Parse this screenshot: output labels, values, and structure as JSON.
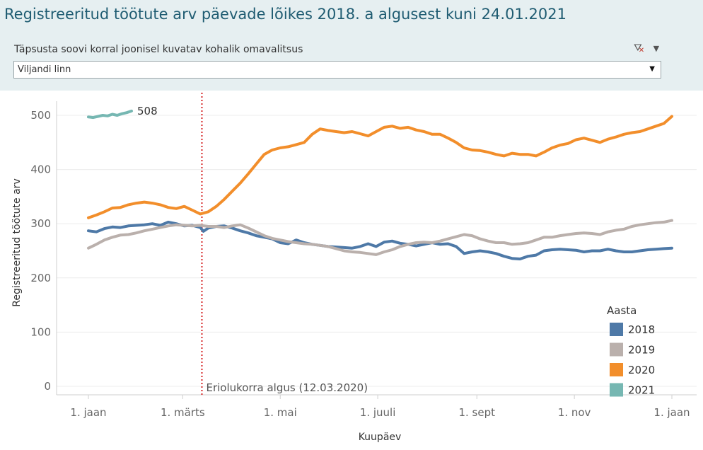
{
  "header": {
    "title": "Registreeritud töötute arv päevade lõikes 2018. a algusest kuni 24.01.2021",
    "filter_label": "Täpsusta soovi korral  joonisel kuvatav kohalik omavalitsus",
    "selected_value": "Viljandi linn",
    "icons": [
      "filter-clear-icon",
      "dropdown-arrow-icon"
    ]
  },
  "chart_data": {
    "type": "line",
    "title": "",
    "xlabel": "Kuupäev",
    "ylabel": "Registreeritud töötute arv",
    "x_domain_days": [
      0,
      365
    ],
    "xlim": [
      "1. jaan",
      "1. jaan"
    ],
    "x_ticks": [
      "1. jaan",
      "1. märts",
      "1. mai",
      "1. juuli",
      "1. sept",
      "1. nov",
      "1. jaan"
    ],
    "x_tick_days": [
      0,
      59,
      120,
      181,
      243,
      304,
      365
    ],
    "ylim": [
      0,
      500
    ],
    "y_ticks": [
      0,
      100,
      200,
      300,
      400,
      500
    ],
    "grid": true,
    "legend": {
      "title": "Aasta",
      "placement": "bottom-right"
    },
    "annotation": {
      "label": "Eriolukorra algus (12.03.2020)",
      "day": 71
    },
    "end_label": {
      "series": "2021",
      "text": "508"
    },
    "series": [
      {
        "name": "2018",
        "color": "#4e79a7",
        "points": [
          [
            0,
            287
          ],
          [
            5,
            285
          ],
          [
            10,
            291
          ],
          [
            15,
            294
          ],
          [
            20,
            293
          ],
          [
            25,
            296
          ],
          [
            30,
            297
          ],
          [
            35,
            298
          ],
          [
            40,
            300
          ],
          [
            45,
            297
          ],
          [
            50,
            303
          ],
          [
            55,
            300
          ],
          [
            60,
            296
          ],
          [
            65,
            297
          ],
          [
            70,
            293
          ],
          [
            72,
            286
          ],
          [
            75,
            292
          ],
          [
            80,
            295
          ],
          [
            85,
            296
          ],
          [
            90,
            292
          ],
          [
            95,
            287
          ],
          [
            100,
            283
          ],
          [
            105,
            278
          ],
          [
            110,
            275
          ],
          [
            115,
            272
          ],
          [
            120,
            265
          ],
          [
            125,
            263
          ],
          [
            130,
            270
          ],
          [
            135,
            265
          ],
          [
            140,
            262
          ],
          [
            145,
            260
          ],
          [
            150,
            258
          ],
          [
            155,
            257
          ],
          [
            160,
            256
          ],
          [
            165,
            255
          ],
          [
            170,
            258
          ],
          [
            175,
            263
          ],
          [
            180,
            258
          ],
          [
            185,
            266
          ],
          [
            190,
            268
          ],
          [
            195,
            264
          ],
          [
            200,
            262
          ],
          [
            205,
            259
          ],
          [
            210,
            262
          ],
          [
            215,
            265
          ],
          [
            220,
            262
          ],
          [
            225,
            263
          ],
          [
            230,
            258
          ],
          [
            235,
            245
          ],
          [
            240,
            248
          ],
          [
            245,
            250
          ],
          [
            250,
            248
          ],
          [
            255,
            245
          ],
          [
            260,
            240
          ],
          [
            265,
            236
          ],
          [
            270,
            235
          ],
          [
            275,
            240
          ],
          [
            280,
            242
          ],
          [
            285,
            250
          ],
          [
            290,
            252
          ],
          [
            295,
            253
          ],
          [
            300,
            252
          ],
          [
            305,
            251
          ],
          [
            310,
            248
          ],
          [
            315,
            250
          ],
          [
            320,
            250
          ],
          [
            325,
            253
          ],
          [
            330,
            250
          ],
          [
            335,
            248
          ],
          [
            340,
            248
          ],
          [
            345,
            250
          ],
          [
            350,
            252
          ],
          [
            355,
            253
          ],
          [
            360,
            254
          ],
          [
            365,
            255
          ]
        ]
      },
      {
        "name": "2019",
        "color": "#bab0ac",
        "points": [
          [
            0,
            255
          ],
          [
            5,
            262
          ],
          [
            10,
            270
          ],
          [
            15,
            275
          ],
          [
            20,
            279
          ],
          [
            25,
            280
          ],
          [
            30,
            283
          ],
          [
            35,
            287
          ],
          [
            40,
            290
          ],
          [
            45,
            293
          ],
          [
            50,
            296
          ],
          [
            55,
            298
          ],
          [
            60,
            297
          ],
          [
            65,
            296
          ],
          [
            70,
            297
          ],
          [
            75,
            295
          ],
          [
            80,
            295
          ],
          [
            85,
            293
          ],
          [
            90,
            296
          ],
          [
            95,
            298
          ],
          [
            100,
            292
          ],
          [
            105,
            285
          ],
          [
            110,
            278
          ],
          [
            115,
            273
          ],
          [
            120,
            270
          ],
          [
            125,
            267
          ],
          [
            130,
            265
          ],
          [
            135,
            263
          ],
          [
            140,
            262
          ],
          [
            145,
            260
          ],
          [
            150,
            258
          ],
          [
            155,
            254
          ],
          [
            160,
            250
          ],
          [
            165,
            248
          ],
          [
            170,
            247
          ],
          [
            175,
            245
          ],
          [
            180,
            243
          ],
          [
            185,
            248
          ],
          [
            190,
            252
          ],
          [
            195,
            258
          ],
          [
            200,
            262
          ],
          [
            205,
            265
          ],
          [
            210,
            266
          ],
          [
            215,
            265
          ],
          [
            220,
            268
          ],
          [
            225,
            272
          ],
          [
            230,
            276
          ],
          [
            235,
            280
          ],
          [
            240,
            278
          ],
          [
            245,
            272
          ],
          [
            250,
            268
          ],
          [
            255,
            265
          ],
          [
            260,
            265
          ],
          [
            265,
            262
          ],
          [
            270,
            263
          ],
          [
            275,
            265
          ],
          [
            280,
            270
          ],
          [
            285,
            275
          ],
          [
            290,
            275
          ],
          [
            295,
            278
          ],
          [
            300,
            280
          ],
          [
            305,
            282
          ],
          [
            310,
            283
          ],
          [
            315,
            282
          ],
          [
            320,
            280
          ],
          [
            325,
            285
          ],
          [
            330,
            288
          ],
          [
            335,
            290
          ],
          [
            340,
            295
          ],
          [
            345,
            298
          ],
          [
            350,
            300
          ],
          [
            355,
            302
          ],
          [
            360,
            303
          ],
          [
            365,
            306
          ]
        ]
      },
      {
        "name": "2020",
        "color": "#f28e2b",
        "points": [
          [
            0,
            311
          ],
          [
            5,
            316
          ],
          [
            10,
            322
          ],
          [
            15,
            329
          ],
          [
            20,
            330
          ],
          [
            25,
            335
          ],
          [
            30,
            338
          ],
          [
            35,
            340
          ],
          [
            40,
            338
          ],
          [
            45,
            335
          ],
          [
            50,
            330
          ],
          [
            55,
            328
          ],
          [
            60,
            332
          ],
          [
            65,
            325
          ],
          [
            70,
            318
          ],
          [
            75,
            322
          ],
          [
            80,
            332
          ],
          [
            85,
            345
          ],
          [
            90,
            360
          ],
          [
            95,
            375
          ],
          [
            100,
            392
          ],
          [
            105,
            410
          ],
          [
            110,
            428
          ],
          [
            115,
            436
          ],
          [
            120,
            440
          ],
          [
            125,
            442
          ],
          [
            130,
            446
          ],
          [
            135,
            450
          ],
          [
            140,
            465
          ],
          [
            145,
            475
          ],
          [
            150,
            472
          ],
          [
            155,
            470
          ],
          [
            160,
            468
          ],
          [
            165,
            470
          ],
          [
            170,
            466
          ],
          [
            175,
            462
          ],
          [
            180,
            470
          ],
          [
            185,
            478
          ],
          [
            190,
            480
          ],
          [
            195,
            476
          ],
          [
            200,
            478
          ],
          [
            205,
            473
          ],
          [
            210,
            470
          ],
          [
            215,
            465
          ],
          [
            220,
            465
          ],
          [
            225,
            458
          ],
          [
            230,
            450
          ],
          [
            235,
            440
          ],
          [
            240,
            436
          ],
          [
            245,
            435
          ],
          [
            250,
            432
          ],
          [
            255,
            428
          ],
          [
            260,
            425
          ],
          [
            265,
            430
          ],
          [
            270,
            428
          ],
          [
            275,
            428
          ],
          [
            280,
            425
          ],
          [
            285,
            432
          ],
          [
            290,
            440
          ],
          [
            295,
            445
          ],
          [
            300,
            448
          ],
          [
            305,
            455
          ],
          [
            310,
            458
          ],
          [
            315,
            454
          ],
          [
            320,
            450
          ],
          [
            325,
            456
          ],
          [
            330,
            460
          ],
          [
            335,
            465
          ],
          [
            340,
            468
          ],
          [
            345,
            470
          ],
          [
            350,
            475
          ],
          [
            355,
            480
          ],
          [
            360,
            485
          ],
          [
            365,
            498
          ]
        ]
      },
      {
        "name": "2021",
        "color": "#76b7b2",
        "points": [
          [
            0,
            497
          ],
          [
            3,
            496
          ],
          [
            6,
            498
          ],
          [
            9,
            500
          ],
          [
            12,
            499
          ],
          [
            15,
            502
          ],
          [
            18,
            500
          ],
          [
            21,
            503
          ],
          [
            24,
            505
          ],
          [
            27,
            508
          ]
        ]
      }
    ]
  }
}
